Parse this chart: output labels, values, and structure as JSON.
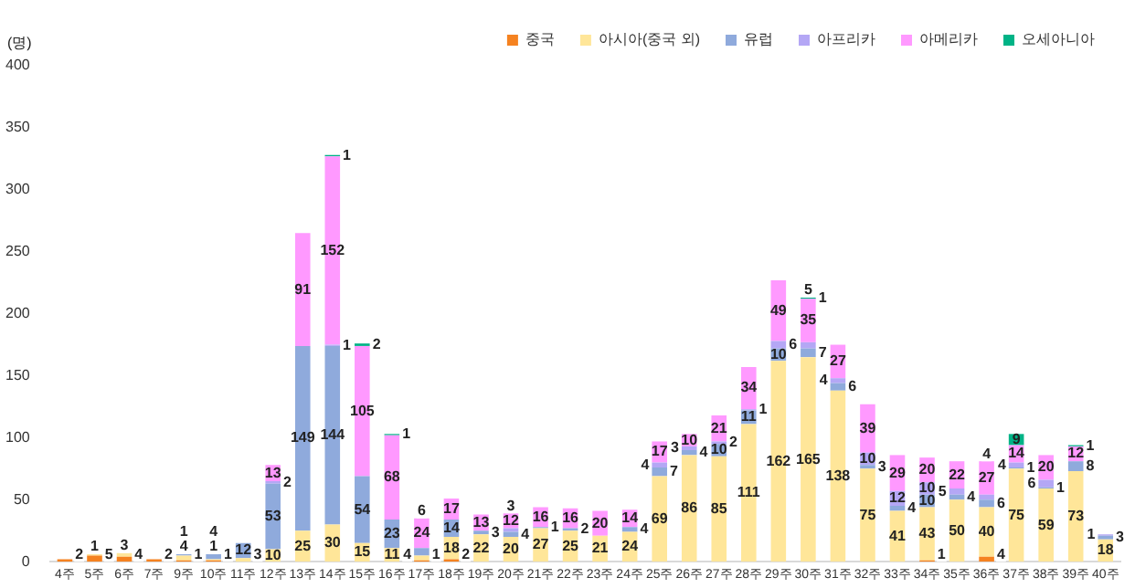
{
  "chart_data": {
    "type": "bar",
    "stacked": true,
    "ylabel": "(명)",
    "categories": [
      "4주",
      "5주",
      "6주",
      "7주",
      "9주",
      "10주",
      "11주",
      "12주",
      "13주",
      "14주",
      "15주",
      "16주",
      "17주",
      "18주",
      "19주",
      "20주",
      "21주",
      "22주",
      "23주",
      "24주",
      "25주",
      "26주",
      "27주",
      "28주",
      "29주",
      "30주",
      "31주",
      "32주",
      "33주",
      "34주",
      "35주",
      "36주",
      "37주",
      "38주",
      "39주",
      "40주"
    ],
    "series": [
      {
        "name": "중국",
        "color": "#f58220",
        "values": [
          2,
          5,
          4,
          2,
          1,
          1,
          null,
          null,
          null,
          null,
          null,
          null,
          1,
          2,
          null,
          null,
          null,
          null,
          null,
          null,
          null,
          null,
          null,
          null,
          null,
          null,
          null,
          null,
          null,
          1,
          null,
          4,
          null,
          null,
          null,
          null
        ]
      },
      {
        "name": "아시아(중국 외)",
        "color": "#ffe699",
        "values": [
          null,
          1,
          3,
          null,
          4,
          1,
          3,
          10,
          25,
          30,
          15,
          11,
          4,
          18,
          22,
          20,
          27,
          25,
          21,
          24,
          69,
          86,
          85,
          111,
          162,
          165,
          138,
          75,
          41,
          43,
          50,
          40,
          75,
          59,
          73,
          18
        ]
      },
      {
        "name": "유럽",
        "color": "#8faadc",
        "values": [
          null,
          null,
          null,
          null,
          1,
          4,
          12,
          53,
          149,
          144,
          54,
          23,
          6,
          14,
          3,
          4,
          1,
          2,
          null,
          4,
          7,
          4,
          10,
          11,
          10,
          7,
          6,
          3,
          4,
          10,
          4,
          6,
          1,
          1,
          8,
          3
        ]
      },
      {
        "name": "아프리카",
        "color": "#b4a7f5",
        "values": [
          null,
          null,
          null,
          null,
          null,
          null,
          null,
          2,
          null,
          1,
          null,
          null,
          null,
          null,
          null,
          3,
          null,
          null,
          null,
          null,
          4,
          3,
          2,
          1,
          6,
          5,
          4,
          10,
          12,
          10,
          5,
          4,
          4,
          6,
          null,
          1
        ]
      },
      {
        "name": "아메리카",
        "color": "#ff99ff",
        "values": [
          null,
          null,
          null,
          null,
          null,
          null,
          null,
          13,
          91,
          152,
          105,
          68,
          24,
          17,
          13,
          12,
          16,
          16,
          20,
          14,
          17,
          10,
          21,
          34,
          49,
          35,
          27,
          39,
          29,
          20,
          22,
          27,
          14,
          20,
          12,
          null
        ]
      },
      {
        "name": "오세아니아",
        "color": "#00b386",
        "values": [
          null,
          null,
          null,
          null,
          null,
          null,
          null,
          null,
          null,
          1,
          2,
          1,
          null,
          null,
          null,
          null,
          null,
          null,
          null,
          null,
          null,
          null,
          null,
          null,
          null,
          1,
          null,
          null,
          null,
          null,
          null,
          null,
          9,
          null,
          1,
          null
        ]
      }
    ],
    "ylim": [
      0,
      400
    ],
    "yticks": [
      0,
      50,
      100,
      150,
      200,
      250,
      300,
      350,
      400
    ],
    "grid": false,
    "legend": "top right",
    "data_labels": true
  }
}
